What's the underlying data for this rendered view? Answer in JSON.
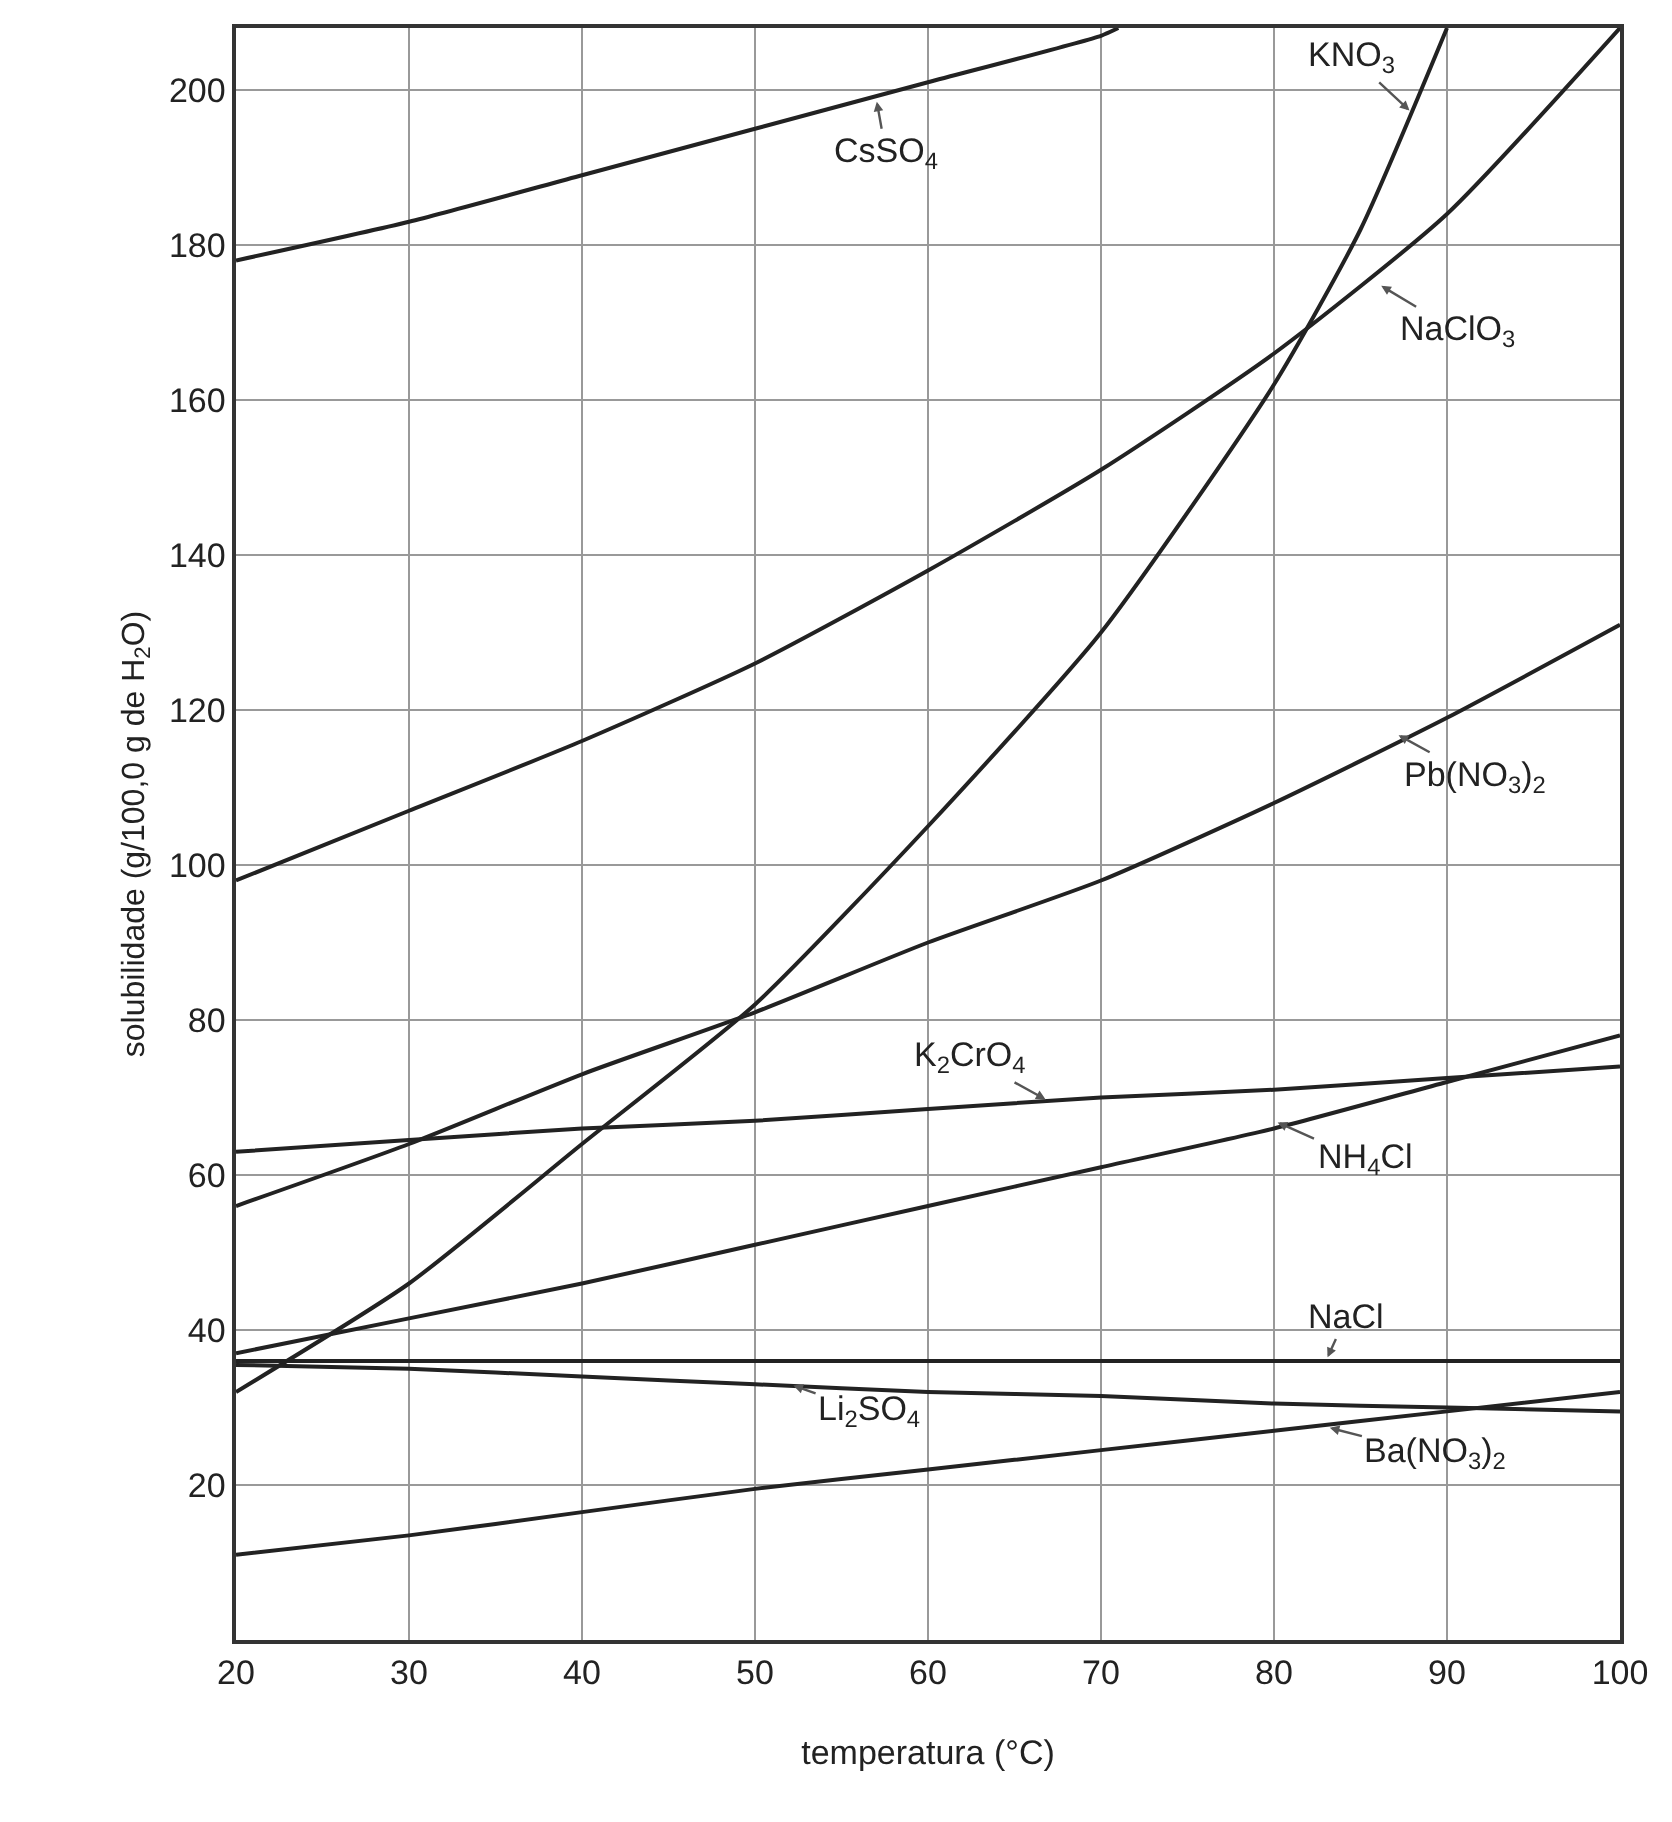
{
  "chart_data": {
    "type": "line",
    "xlabel": "temperatura (°C)",
    "ylabel": "solubilidade (g/100,0 g de H$_{2}$O)",
    "xlim": [
      20,
      100
    ],
    "ylim": [
      0,
      208
    ],
    "xticks": [
      20,
      30,
      40,
      50,
      60,
      70,
      80,
      90,
      100
    ],
    "yticks": [
      20,
      40,
      60,
      80,
      100,
      120,
      140,
      160,
      180,
      200
    ],
    "grid": true,
    "marker": "none",
    "line_style": "solid",
    "series": [
      {
        "color": "#222222",
        "x": [
          20,
          30,
          40,
          50,
          60,
          70,
          71
        ],
        "values": [
          178,
          183,
          189,
          195,
          201,
          207,
          208
        ]
      },
      {
        "color": "#222222",
        "x": [
          20,
          30,
          40,
          50,
          60,
          70,
          80,
          85,
          90
        ],
        "values": [
          32,
          46,
          64,
          82,
          105,
          130,
          162,
          182,
          208
        ]
      },
      {
        "color": "#222222",
        "x": [
          20,
          30,
          40,
          50,
          60,
          70,
          80,
          90,
          100
        ],
        "values": [
          98,
          107,
          116,
          126,
          138,
          151,
          166,
          184,
          208
        ]
      },
      {
        "color": "#222222",
        "x": [
          20,
          30,
          40,
          50,
          60,
          70,
          80,
          90,
          100
        ],
        "values": [
          56,
          64,
          73,
          81,
          90,
          98,
          108,
          119,
          131
        ]
      },
      {
        "color": "#222222",
        "x": [
          20,
          30,
          40,
          50,
          60,
          70,
          80,
          90,
          100
        ],
        "values": [
          63,
          64.5,
          66,
          67,
          68.5,
          70,
          71,
          72.5,
          74
        ]
      },
      {
        "color": "#222222",
        "x": [
          20,
          30,
          40,
          50,
          60,
          70,
          80,
          90,
          100
        ],
        "values": [
          37,
          41.5,
          46,
          51,
          56,
          61,
          66,
          72,
          78
        ]
      },
      {
        "color": "#222222",
        "x": [
          20,
          100
        ],
        "values": [
          36,
          36
        ]
      },
      {
        "color": "#222222",
        "x": [
          20,
          30,
          40,
          50,
          60,
          70,
          80,
          90,
          100
        ],
        "values": [
          35.5,
          35,
          34,
          33,
          32,
          31.5,
          30.5,
          30,
          29.5
        ]
      },
      {
        "color": "#222222",
        "x": [
          20,
          30,
          40,
          50,
          60,
          70,
          80,
          90,
          100
        ],
        "values": [
          11,
          13.5,
          16.5,
          19.5,
          22,
          24.5,
          27,
          29.5,
          32
        ]
      }
    ],
    "annotations": [
      {
        "text": "CsSO$_{4}$",
        "x": 57,
        "y": 199
      },
      {
        "text": "KNO$_{3}$",
        "x": 88,
        "y": 197
      },
      {
        "text": "NaClO$_{3}$",
        "x": 86,
        "y": 175
      },
      {
        "text": "Pb(NO$_{3}$)$_{2}$",
        "x": 87,
        "y": 117
      },
      {
        "text": "K$_{2}$CrO$_{4}$",
        "x": 67,
        "y": 69.5
      },
      {
        "text": "NH$_{4}$Cl",
        "x": 80,
        "y": 67
      },
      {
        "text": "NaCl",
        "x": 83,
        "y": 36
      },
      {
        "text": "Li$_{2}$SO$_{4}$",
        "x": 52,
        "y": 33
      },
      {
        "text": "Ba(NO$_{3}$)$_{2}$",
        "x": 83,
        "y": 27.5
      }
    ]
  }
}
